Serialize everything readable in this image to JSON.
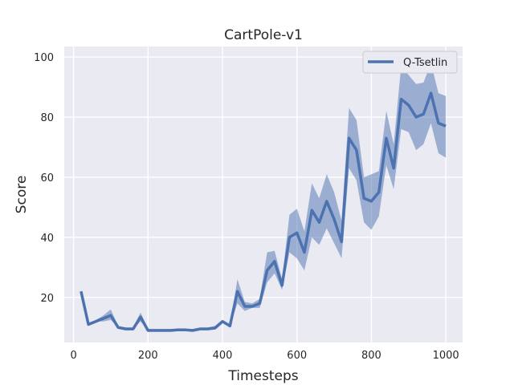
{
  "chart_data": {
    "type": "line",
    "title": "CartPole-v1",
    "xlabel": "Timesteps",
    "ylabel": "Score",
    "xlim": [
      -25,
      1045
    ],
    "ylim": [
      5,
      103.5
    ],
    "xticks": [
      0,
      200,
      400,
      600,
      800,
      1000
    ],
    "yticks": [
      20,
      40,
      60,
      80,
      100
    ],
    "grid": true,
    "legend_position": "top-right",
    "colors": {
      "background": "#eaeaf2",
      "line": "#4c72b0",
      "band": "#4c72b0"
    },
    "series": [
      {
        "name": "Q-Tsetlin",
        "x": [
          20,
          40,
          60,
          80,
          100,
          120,
          140,
          160,
          180,
          200,
          220,
          240,
          260,
          280,
          300,
          320,
          340,
          360,
          380,
          400,
          420,
          440,
          460,
          480,
          500,
          520,
          540,
          560,
          580,
          600,
          620,
          640,
          660,
          680,
          700,
          720,
          740,
          760,
          780,
          800,
          820,
          840,
          860,
          880,
          900,
          920,
          940,
          960,
          980,
          1000
        ],
        "values": [
          22,
          11,
          12,
          13,
          14,
          10,
          9.5,
          9.5,
          13.5,
          9,
          9,
          9,
          9,
          9.2,
          9.2,
          9,
          9.5,
          9.5,
          9.8,
          12,
          10.5,
          22,
          17,
          17,
          18,
          29,
          32,
          24,
          40,
          41.5,
          35,
          49,
          45,
          52,
          46,
          38.5,
          73,
          69,
          53,
          52,
          55,
          73,
          63,
          86,
          84,
          80,
          81,
          88,
          78,
          77
        ],
        "lower": [
          22,
          11,
          12,
          12,
          12.5,
          10,
          9.5,
          9.5,
          12,
          9,
          9,
          9,
          9,
          9.2,
          9.2,
          9,
          9.5,
          9.5,
          9.8,
          11.5,
          10.5,
          18,
          15.5,
          16.5,
          16.5,
          25,
          28,
          22.5,
          35,
          33,
          29,
          40,
          37.5,
          43,
          38,
          33,
          63,
          59,
          45,
          42.5,
          47,
          64,
          56,
          76,
          75,
          69,
          71,
          78,
          68,
          66.5
        ],
        "upper": [
          22,
          11.5,
          12.5,
          14,
          16,
          10.5,
          10,
          10,
          15,
          9.5,
          9.5,
          9.5,
          9.5,
          9.5,
          9.5,
          9.5,
          10,
          10,
          10.5,
          12.5,
          11,
          26,
          18.5,
          18,
          19.5,
          35,
          35.5,
          26,
          47.5,
          49.5,
          42,
          58,
          53,
          61,
          55,
          45.5,
          83,
          79,
          60,
          61,
          62,
          82,
          71,
          97,
          94,
          91,
          91.5,
          98,
          88,
          87
        ]
      }
    ]
  }
}
